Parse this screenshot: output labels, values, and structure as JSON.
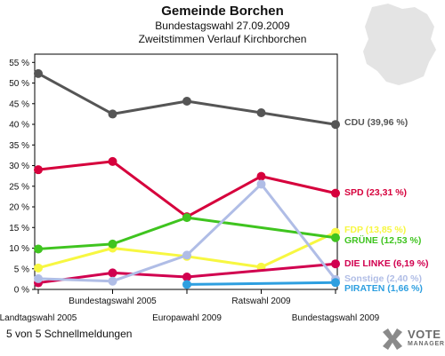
{
  "header": {
    "title": "Gemeinde Borchen",
    "subtitle1": "Bundestagswahl 27.09.2009",
    "subtitle2": "Zweitstimmen Verlauf Kirchborchen"
  },
  "footer": {
    "status": "5 von 5 Schnellmeldungen"
  },
  "brand": {
    "name": "VOTE",
    "sub": "MANAGER"
  },
  "chart_data": {
    "type": "line",
    "categories": [
      "Landtagswahl 2005",
      "Bundestagswahl 2005",
      "Europawahl 2009",
      "Ratswahl 2009",
      "Bundestagswahl 2009"
    ],
    "ylim": [
      0,
      57
    ],
    "yticks": [
      "0 %",
      "5 %",
      "10 %",
      "15 %",
      "20 %",
      "25 %",
      "30 %",
      "35 %",
      "40 %",
      "45 %",
      "50 %",
      "55 %"
    ],
    "grid": false,
    "series": [
      {
        "name": "CDU (39,96 %)",
        "color": "#555555",
        "values": [
          52.3,
          42.5,
          45.6,
          42.8,
          39.96
        ]
      },
      {
        "name": "SPD (23,31 %)",
        "color": "#d6003c",
        "values": [
          29.0,
          31.0,
          17.6,
          27.4,
          23.31
        ]
      },
      {
        "name": "FDP (13,85 %)",
        "color": "#f7f741",
        "values": [
          5.2,
          10.0,
          8.0,
          5.4,
          13.85
        ]
      },
      {
        "name": "GRÜNE (12,53 %)",
        "color": "#3fc41f",
        "values": [
          9.8,
          11.0,
          17.4,
          null,
          12.53
        ]
      },
      {
        "name": "DIE LINKE (6,19 %)",
        "color": "#d1004f",
        "values": [
          1.6,
          4.0,
          3.0,
          null,
          6.19
        ]
      },
      {
        "name": "Sonstige (2,40 %)",
        "color": "#b0bde6",
        "values": [
          2.6,
          2.0,
          8.3,
          25.5,
          2.4
        ]
      },
      {
        "name": "PIRATEN (1,66 %)",
        "color": "#2e9fe0",
        "values": [
          null,
          null,
          1.2,
          null,
          1.66
        ]
      }
    ]
  }
}
